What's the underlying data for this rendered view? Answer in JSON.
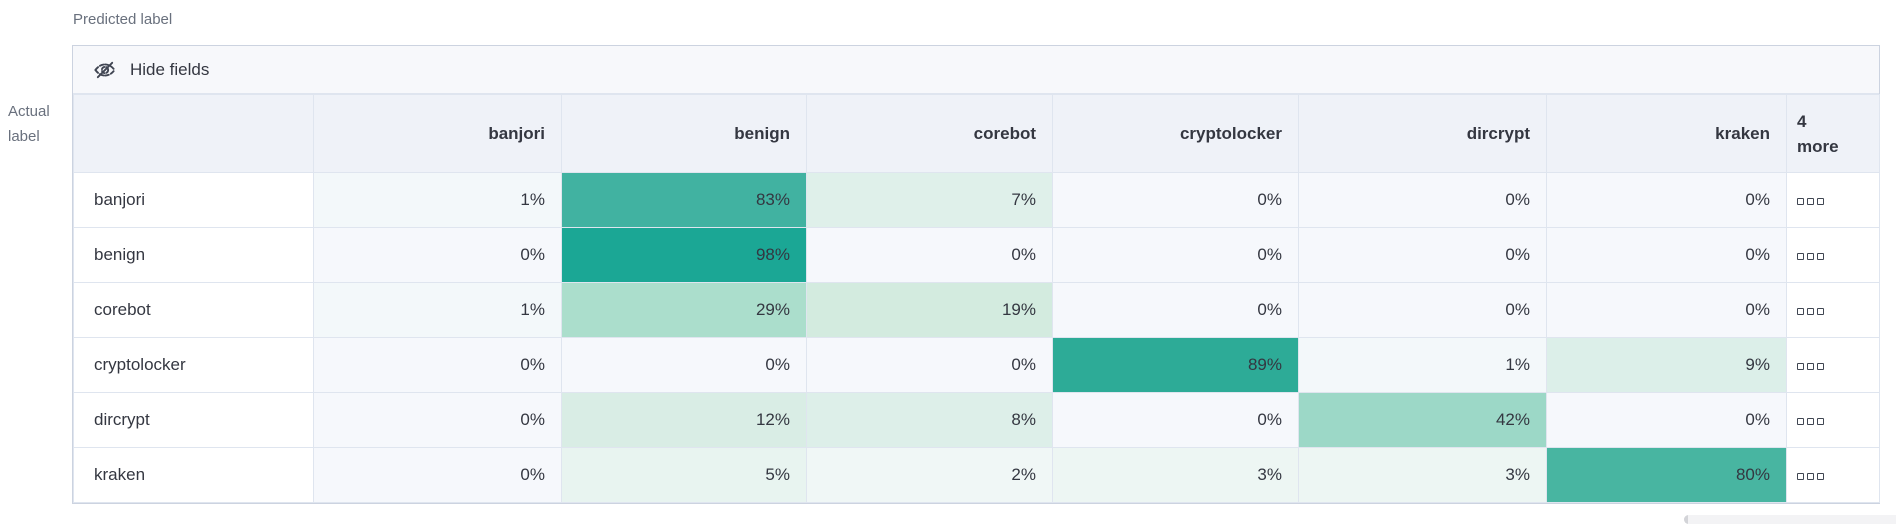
{
  "axes": {
    "predicted_label": "Predicted label",
    "actual_label_line1": "Actual",
    "actual_label_line2": "label"
  },
  "toolbar": {
    "hide_fields_label": "Hide fields",
    "icon": "eye-closed-icon"
  },
  "matrix": {
    "columns": [
      "banjori",
      "benign",
      "corebot",
      "cryptolocker",
      "dircrypt",
      "kraken"
    ],
    "more_header": {
      "count": "4",
      "label": "more"
    },
    "more_cell_icon": "boxes-horizontal-icon",
    "rows": [
      {
        "label": "banjori",
        "cells": [
          {
            "value": "1%",
            "color": "#f3f8fa"
          },
          {
            "value": "83%",
            "color": "#41b2a1"
          },
          {
            "value": "7%",
            "color": "#dff0ea"
          },
          {
            "value": "0%",
            "color": "#f6f8fc"
          },
          {
            "value": "0%",
            "color": "#f6f8fc"
          },
          {
            "value": "0%",
            "color": "#f6f8fc"
          }
        ]
      },
      {
        "label": "benign",
        "cells": [
          {
            "value": "0%",
            "color": "#f6f8fc"
          },
          {
            "value": "98%",
            "color": "#1ba795"
          },
          {
            "value": "0%",
            "color": "#f6f8fc"
          },
          {
            "value": "0%",
            "color": "#f6f8fc"
          },
          {
            "value": "0%",
            "color": "#f6f8fc"
          },
          {
            "value": "0%",
            "color": "#f6f8fc"
          }
        ]
      },
      {
        "label": "corebot",
        "cells": [
          {
            "value": "1%",
            "color": "#f3f8fa"
          },
          {
            "value": "29%",
            "color": "#abdecc"
          },
          {
            "value": "19%",
            "color": "#d3ebdf"
          },
          {
            "value": "0%",
            "color": "#f6f8fc"
          },
          {
            "value": "0%",
            "color": "#f6f8fc"
          },
          {
            "value": "0%",
            "color": "#f6f8fc"
          }
        ]
      },
      {
        "label": "cryptolocker",
        "cells": [
          {
            "value": "0%",
            "color": "#f6f8fc"
          },
          {
            "value": "0%",
            "color": "#f6f8fc"
          },
          {
            "value": "0%",
            "color": "#f6f8fc"
          },
          {
            "value": "89%",
            "color": "#2dab97"
          },
          {
            "value": "1%",
            "color": "#f3f8fa"
          },
          {
            "value": "9%",
            "color": "#dcefe9"
          }
        ]
      },
      {
        "label": "dircrypt",
        "cells": [
          {
            "value": "0%",
            "color": "#f6f8fc"
          },
          {
            "value": "12%",
            "color": "#d9ede5"
          },
          {
            "value": "8%",
            "color": "#ddefe9"
          },
          {
            "value": "0%",
            "color": "#f6f8fc"
          },
          {
            "value": "42%",
            "color": "#9cd8c7"
          },
          {
            "value": "0%",
            "color": "#f6f8fc"
          }
        ]
      },
      {
        "label": "kraken",
        "cells": [
          {
            "value": "0%",
            "color": "#f6f8fc"
          },
          {
            "value": "5%",
            "color": "#e8f4f0"
          },
          {
            "value": "2%",
            "color": "#f0f7f6"
          },
          {
            "value": "3%",
            "color": "#edf6f3"
          },
          {
            "value": "3%",
            "color": "#edf6f3"
          },
          {
            "value": "80%",
            "color": "#48b5a1"
          }
        ]
      }
    ]
  },
  "chart_data": {
    "type": "heatmap",
    "title": "",
    "xlabel": "Predicted label",
    "ylabel": "Actual label",
    "x_categories": [
      "banjori",
      "benign",
      "corebot",
      "cryptolocker",
      "dircrypt",
      "kraken"
    ],
    "y_categories": [
      "banjori",
      "benign",
      "corebot",
      "cryptolocker",
      "dircrypt",
      "kraken"
    ],
    "values_percent": [
      [
        1,
        83,
        7,
        0,
        0,
        0
      ],
      [
        0,
        98,
        0,
        0,
        0,
        0
      ],
      [
        1,
        29,
        19,
        0,
        0,
        0
      ],
      [
        0,
        0,
        0,
        89,
        1,
        9
      ],
      [
        0,
        12,
        8,
        0,
        42,
        0
      ],
      [
        0,
        5,
        2,
        3,
        3,
        80
      ]
    ],
    "hidden_columns_note": "4 more",
    "legend_position": "none",
    "grid": true
  },
  "colors": {
    "accent_teal": "#54b399",
    "teal_strong": "#1ba795",
    "header_bg": "#eff2f8",
    "toolbar_bg": "#f7f8fb",
    "zero_cell_bg": "#f6f8fc",
    "border_outer": "#ccd3e0",
    "border_inner": "#dfe5ef",
    "text_dark": "#343741",
    "text_gray": "#69707d"
  }
}
